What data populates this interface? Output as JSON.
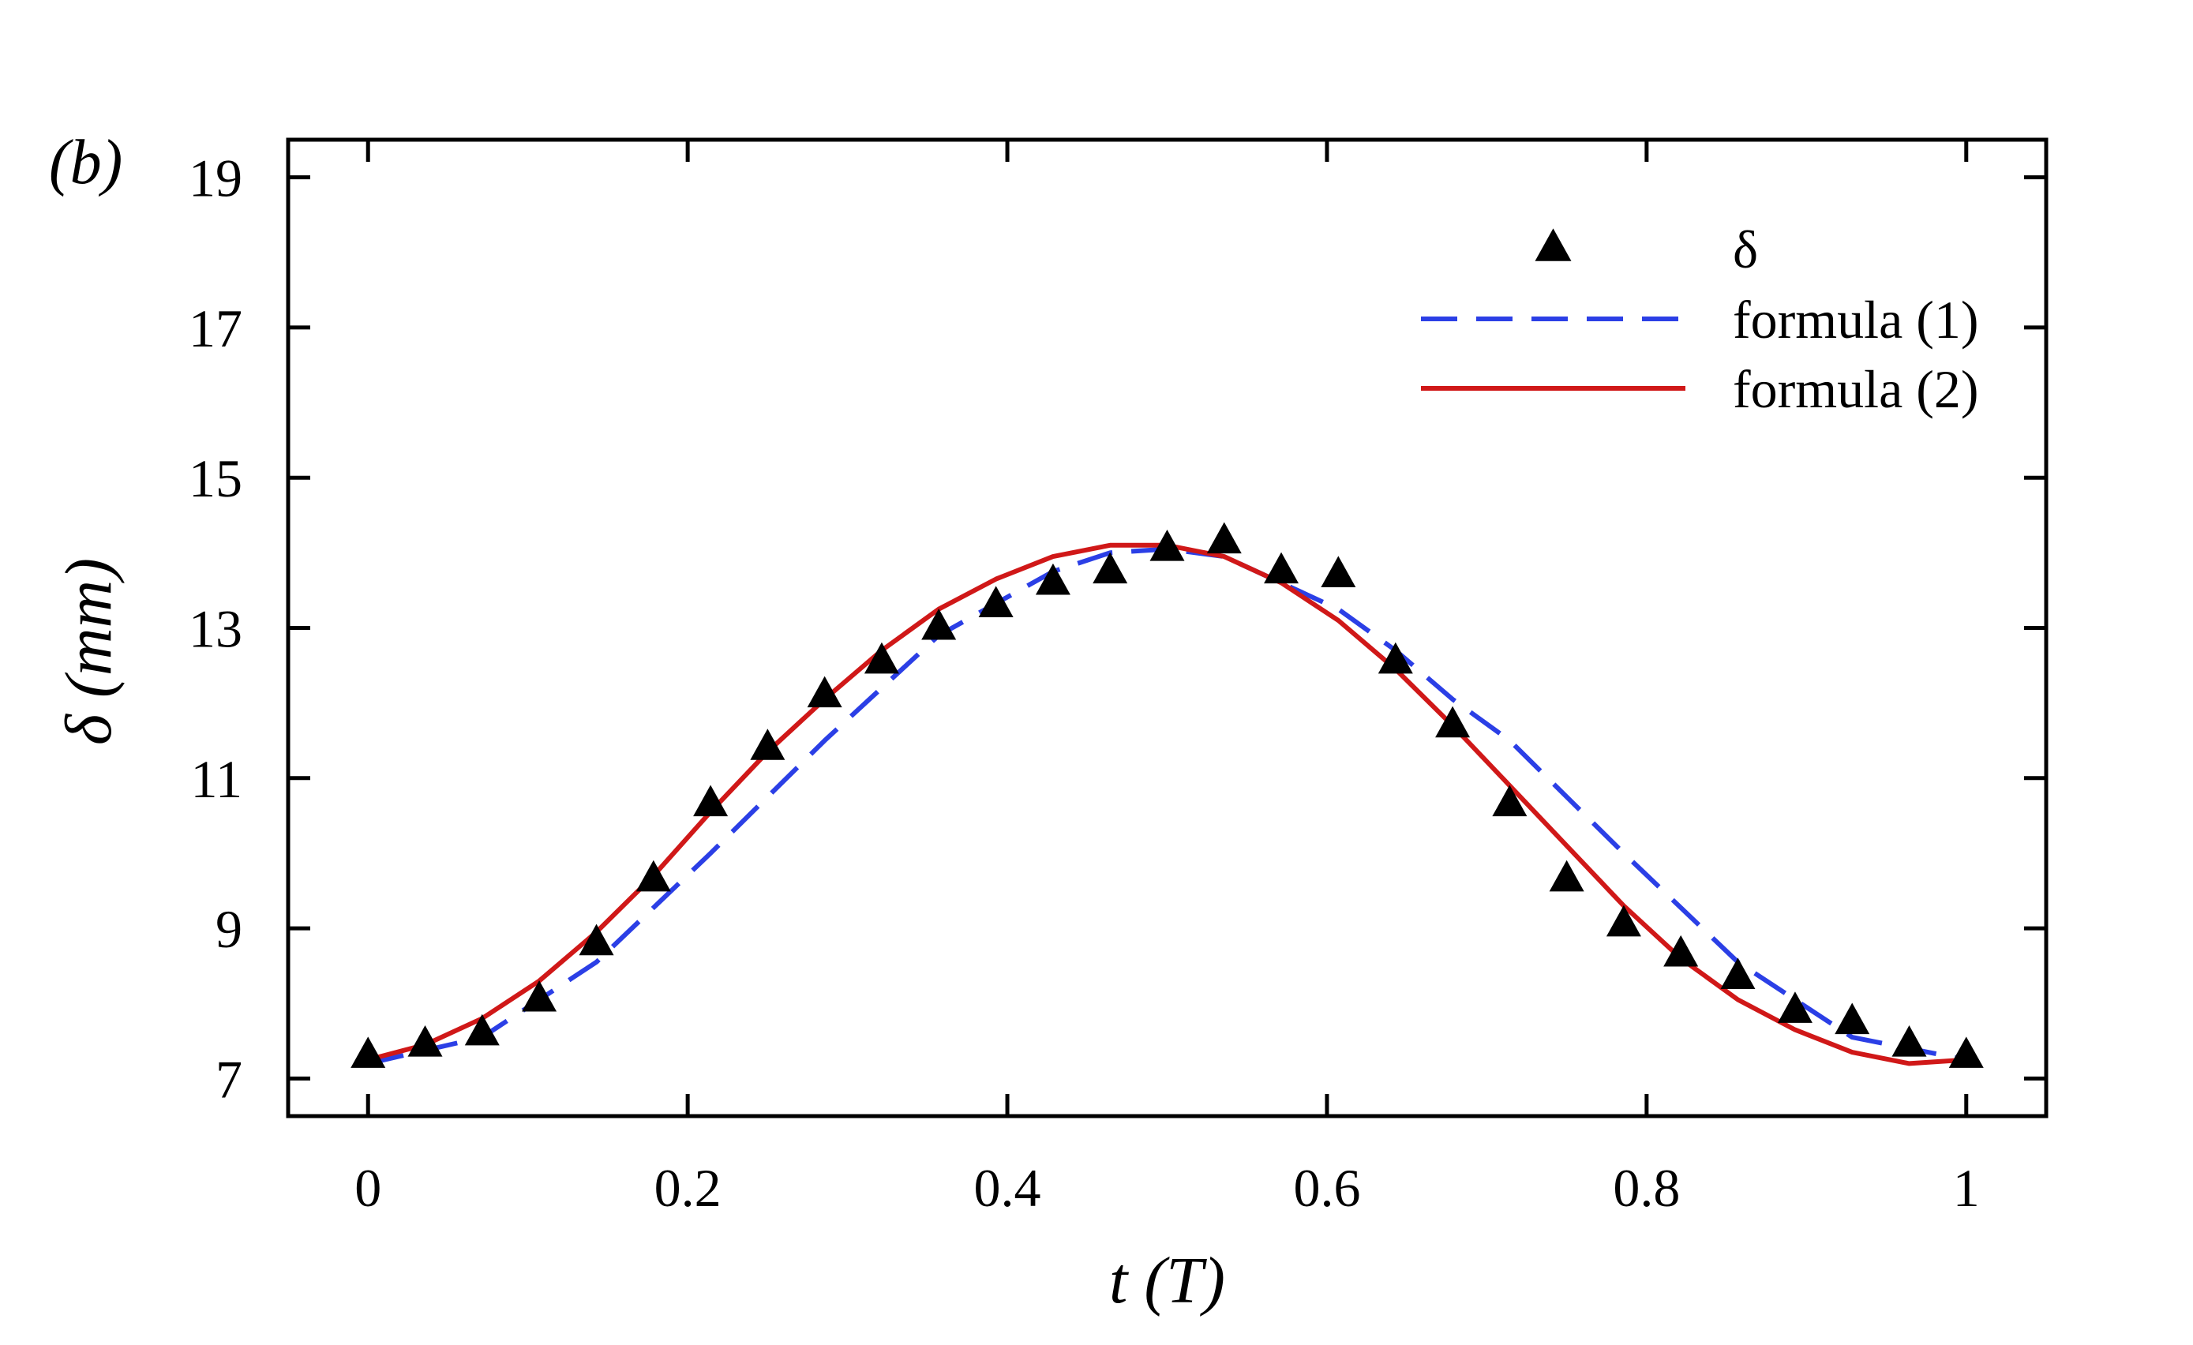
{
  "panel_label": "(b)",
  "colors": {
    "markers": "#000000",
    "formula1": "#2b3fe6",
    "formula2": "#d01818",
    "axes": "#000000"
  },
  "chart_data": {
    "type": "line",
    "title": "",
    "xlabel": "t (T)",
    "ylabel": "δ (mm)",
    "xlim": [
      -0.05,
      1.05
    ],
    "ylim": [
      6.5,
      19.5
    ],
    "xticks": [
      0,
      0.2,
      0.4,
      0.6,
      0.8,
      1
    ],
    "xtick_labels": [
      "0",
      "0.2",
      "0.4",
      "0.6",
      "0.8",
      "1"
    ],
    "yticks": [
      7,
      9,
      11,
      13,
      15,
      17,
      19
    ],
    "ytick_labels": [
      "7",
      "9",
      "11",
      "13",
      "15",
      "17",
      "19"
    ],
    "legend_position": "top-right",
    "series": [
      {
        "name": "δ",
        "style": "markers",
        "marker": "triangle",
        "x": [
          0,
          0.0357,
          0.0714,
          0.1071,
          0.1429,
          0.1786,
          0.2143,
          0.25,
          0.2857,
          0.3214,
          0.3571,
          0.3929,
          0.4286,
          0.4643,
          0.5,
          0.5357,
          0.5714,
          0.6071,
          0.6429,
          0.6786,
          0.7143,
          0.75,
          0.7857,
          0.8214,
          0.8571,
          0.8929,
          0.9286,
          0.9643,
          1.0
        ],
        "y": [
          7.3,
          7.45,
          7.6,
          8.05,
          8.8,
          9.65,
          10.65,
          11.4,
          12.1,
          12.55,
          13.0,
          13.3,
          13.6,
          13.75,
          14.05,
          14.15,
          13.75,
          13.7,
          12.55,
          11.7,
          10.65,
          9.65,
          9.05,
          8.65,
          8.35,
          7.9,
          7.75,
          7.45,
          7.3
        ]
      },
      {
        "name": "formula (1)",
        "style": "dashed",
        "x": [
          0,
          0.0714,
          0.1429,
          0.2143,
          0.2857,
          0.3571,
          0.4286,
          0.4643,
          0.5,
          0.5357,
          0.5714,
          0.6071,
          0.6429,
          0.6786,
          0.7143,
          0.7857,
          0.8571,
          0.9286,
          1.0
        ],
        "y": [
          7.2,
          7.55,
          8.55,
          10.0,
          11.5,
          12.9,
          13.75,
          14.0,
          14.05,
          13.95,
          13.6,
          13.25,
          12.7,
          12.05,
          11.5,
          10.0,
          8.55,
          7.55,
          7.25
        ]
      },
      {
        "name": "formula (2)",
        "style": "solid",
        "x": [
          0,
          0.0357,
          0.0714,
          0.1071,
          0.1429,
          0.1786,
          0.2143,
          0.25,
          0.2857,
          0.3214,
          0.3571,
          0.3929,
          0.4286,
          0.4643,
          0.5,
          0.5357,
          0.5714,
          0.6071,
          0.6429,
          0.6786,
          0.7143,
          0.75,
          0.7857,
          0.8214,
          0.8571,
          0.8929,
          0.9286,
          0.9643,
          1.0
        ],
        "y": [
          7.25,
          7.45,
          7.8,
          8.3,
          8.95,
          9.7,
          10.55,
          11.35,
          12.05,
          12.7,
          13.25,
          13.65,
          13.95,
          14.1,
          14.1,
          13.95,
          13.6,
          13.1,
          12.45,
          11.7,
          10.9,
          10.1,
          9.3,
          8.6,
          8.05,
          7.65,
          7.35,
          7.2,
          7.25
        ]
      }
    ]
  }
}
